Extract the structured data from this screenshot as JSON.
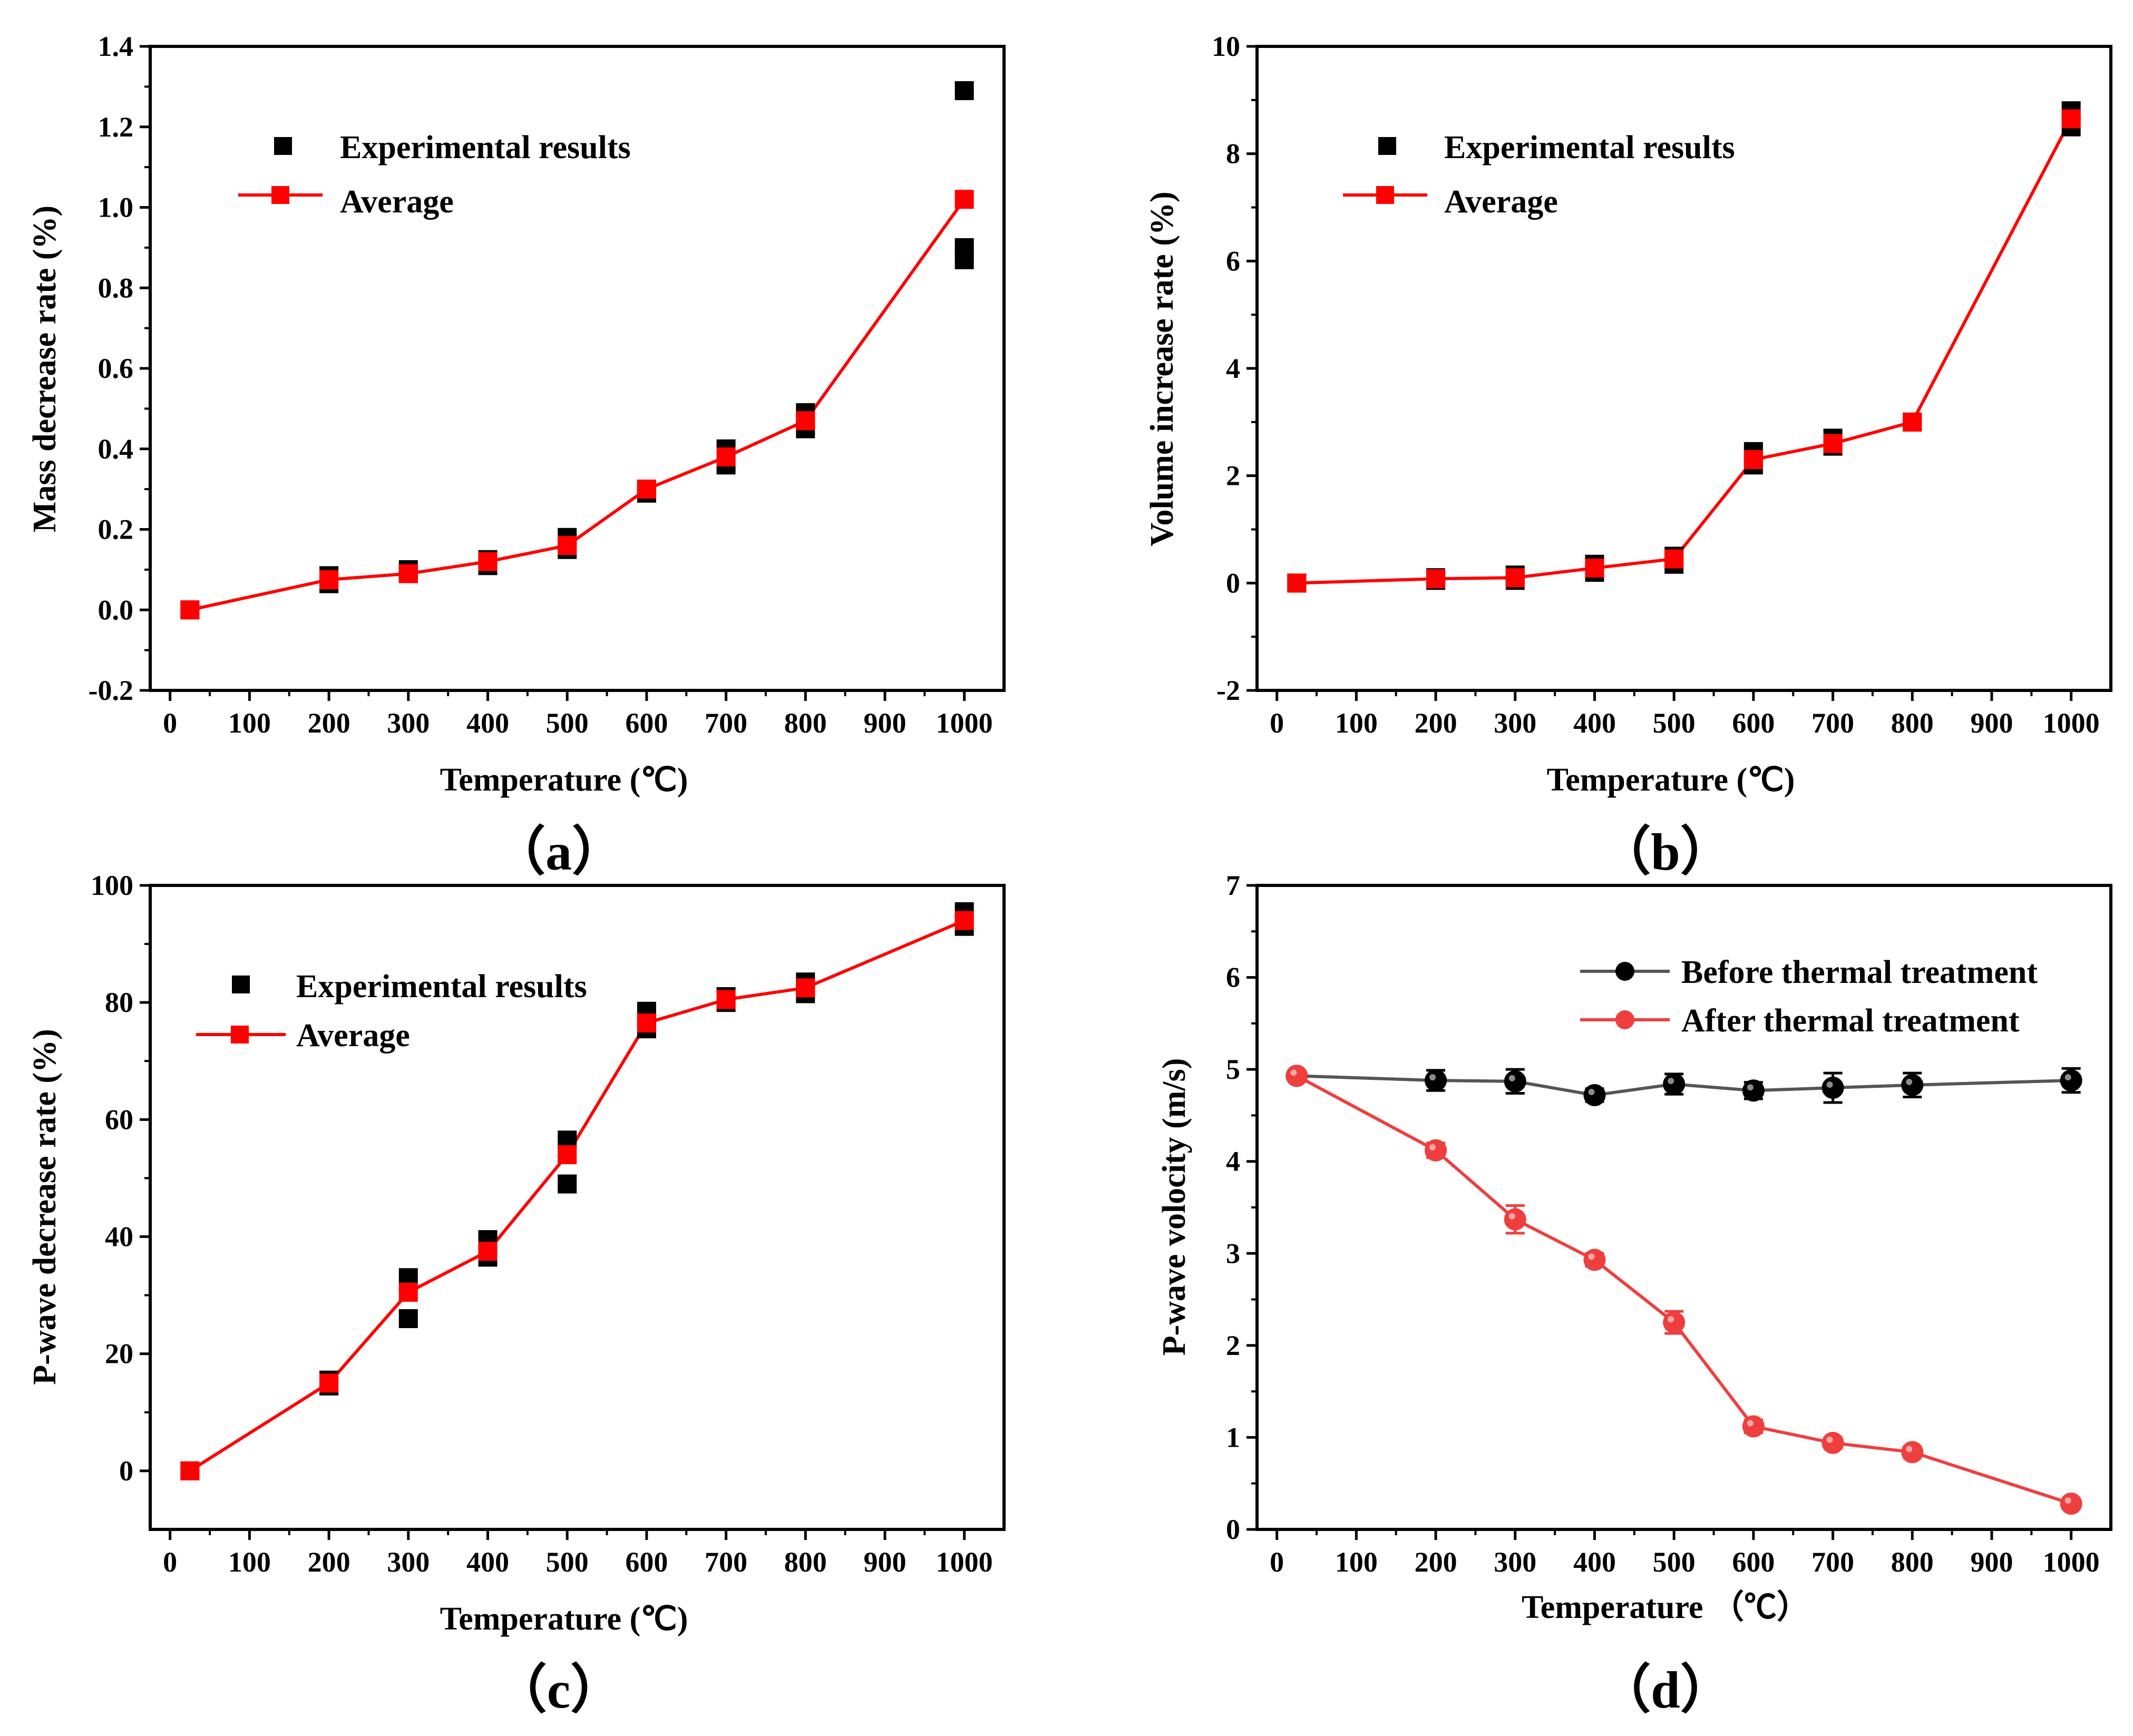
{
  "chart_data": [
    {
      "panel_label": "（a）",
      "type": "scatter",
      "xlabel": "Temperature (℃)",
      "ylabel": "Mass decrease rate (%)",
      "xticks": [
        "0",
        "100",
        "200",
        "300",
        "400",
        "500",
        "600",
        "700",
        "800",
        "900",
        "1000"
      ],
      "yticks": [
        "-0.2",
        "0.0",
        "0.2",
        "0.4",
        "0.6",
        "0.8",
        "1.0",
        "1.2",
        "1.4"
      ],
      "xlim": [
        -25,
        1050
      ],
      "ylim": [
        -0.2,
        1.4
      ],
      "legend_position": "top-left",
      "series": [
        {
          "name": "Experimental results",
          "color": "#000000",
          "marker": "square",
          "line": false,
          "points": [
            [
              25,
              0.0
            ],
            [
              200,
              0.065
            ],
            [
              200,
              0.085
            ],
            [
              300,
              0.09
            ],
            [
              300,
              0.1
            ],
            [
              400,
              0.11
            ],
            [
              400,
              0.125
            ],
            [
              500,
              0.15
            ],
            [
              500,
              0.18
            ],
            [
              600,
              0.29
            ],
            [
              600,
              0.3
            ],
            [
              700,
              0.36
            ],
            [
              700,
              0.4
            ],
            [
              800,
              0.45
            ],
            [
              800,
              0.49
            ],
            [
              1000,
              0.87
            ],
            [
              1000,
              0.9
            ],
            [
              1000,
              1.29
            ]
          ]
        },
        {
          "name": "Average",
          "color": "#ff0000",
          "marker": "square",
          "line": true,
          "points": [
            [
              25,
              0.0
            ],
            [
              200,
              0.075
            ],
            [
              300,
              0.09
            ],
            [
              400,
              0.12
            ],
            [
              500,
              0.16
            ],
            [
              600,
              0.3
            ],
            [
              700,
              0.38
            ],
            [
              800,
              0.47
            ],
            [
              1000,
              1.02
            ]
          ]
        }
      ]
    },
    {
      "panel_label": "（b）",
      "type": "scatter",
      "xlabel": "Temperature (℃)",
      "ylabel": "Volume increase rate (%)",
      "xticks": [
        "0",
        "100",
        "200",
        "300",
        "400",
        "500",
        "600",
        "700",
        "800",
        "900",
        "1000"
      ],
      "yticks": [
        "-2",
        "0",
        "2",
        "4",
        "6",
        "8",
        "10"
      ],
      "xlim": [
        -25,
        1050
      ],
      "ylim": [
        -2,
        10
      ],
      "legend_position": "top-left",
      "series": [
        {
          "name": "Experimental results",
          "color": "#000000",
          "marker": "square",
          "line": false,
          "points": [
            [
              25,
              0.0
            ],
            [
              200,
              0.05
            ],
            [
              200,
              0.1
            ],
            [
              300,
              0.05
            ],
            [
              300,
              0.15
            ],
            [
              400,
              0.2
            ],
            [
              400,
              0.35
            ],
            [
              500,
              0.35
            ],
            [
              500,
              0.5
            ],
            [
              600,
              2.2
            ],
            [
              600,
              2.45
            ],
            [
              700,
              2.55
            ],
            [
              700,
              2.7
            ],
            [
              800,
              3.0
            ],
            [
              1000,
              8.5
            ],
            [
              1000,
              8.8
            ]
          ]
        },
        {
          "name": "Average",
          "color": "#ff0000",
          "marker": "square",
          "line": true,
          "points": [
            [
              25,
              0.0
            ],
            [
              200,
              0.08
            ],
            [
              300,
              0.1
            ],
            [
              400,
              0.28
            ],
            [
              500,
              0.45
            ],
            [
              600,
              2.3
            ],
            [
              700,
              2.6
            ],
            [
              800,
              3.0
            ],
            [
              1000,
              8.65
            ]
          ]
        }
      ]
    },
    {
      "panel_label": "（c）",
      "type": "scatter",
      "xlabel": "Temperature (℃)",
      "ylabel": "P-wave decrease rate (%)",
      "xticks": [
        "0",
        "100",
        "200",
        "300",
        "400",
        "500",
        "600",
        "700",
        "800",
        "900",
        "1000"
      ],
      "yticks": [
        "0",
        "20",
        "40",
        "60",
        "80",
        "100"
      ],
      "xlim": [
        -25,
        1050
      ],
      "ylim": [
        -10,
        100
      ],
      "legend_position": "top-left",
      "series": [
        {
          "name": "Experimental results",
          "color": "#000000",
          "marker": "square",
          "line": false,
          "points": [
            [
              25,
              0.0
            ],
            [
              200,
              14.5
            ],
            [
              200,
              15.5
            ],
            [
              300,
              26.0
            ],
            [
              300,
              33.0
            ],
            [
              400,
              36.5
            ],
            [
              400,
              39.5
            ],
            [
              500,
              49.0
            ],
            [
              500,
              56.5
            ],
            [
              600,
              75.5
            ],
            [
              600,
              78.5
            ],
            [
              700,
              80.0
            ],
            [
              700,
              81.0
            ],
            [
              800,
              81.5
            ],
            [
              800,
              83.5
            ],
            [
              1000,
              93.0
            ],
            [
              1000,
              95.5
            ]
          ]
        },
        {
          "name": "Average",
          "color": "#ff0000",
          "marker": "square",
          "line": true,
          "points": [
            [
              25,
              0.0
            ],
            [
              200,
              15.0
            ],
            [
              300,
              30.5
            ],
            [
              400,
              37.5
            ],
            [
              500,
              54.0
            ],
            [
              600,
              76.5
            ],
            [
              700,
              80.5
            ],
            [
              800,
              82.5
            ],
            [
              1000,
              94.0
            ]
          ]
        }
      ]
    },
    {
      "panel_label": "（d）",
      "type": "line",
      "xlabel": "Temperature （℃）",
      "ylabel": "P-wave volocity (m/s)",
      "xticks": [
        "0",
        "100",
        "200",
        "300",
        "400",
        "500",
        "600",
        "700",
        "800",
        "900",
        "1000"
      ],
      "yticks": [
        "0",
        "1",
        "2",
        "3",
        "4",
        "5",
        "6",
        "7"
      ],
      "xlim": [
        -25,
        1050
      ],
      "ylim": [
        0,
        7
      ],
      "legend_position": "top-right",
      "series": [
        {
          "name": "Before thermal treatment",
          "color": "#555555",
          "marker": "circle",
          "marker_color": "#000000",
          "line": true,
          "points": [
            [
              25,
              4.93
            ],
            [
              200,
              4.88
            ],
            [
              300,
              4.87
            ],
            [
              400,
              4.72
            ],
            [
              500,
              4.84
            ],
            [
              600,
              4.77
            ],
            [
              700,
              4.8
            ],
            [
              800,
              4.83
            ],
            [
              1000,
              4.88
            ]
          ],
          "errors": [
            0.04,
            0.11,
            0.13,
            0.07,
            0.11,
            0.09,
            0.16,
            0.13,
            0.13
          ]
        },
        {
          "name": "After  thermal treatment",
          "color": "#ef3e3e",
          "marker": "circle",
          "marker_color": "#ef3e3e",
          "line": true,
          "points": [
            [
              25,
              4.93
            ],
            [
              200,
              4.12
            ],
            [
              300,
              3.37
            ],
            [
              400,
              2.93
            ],
            [
              500,
              2.25
            ],
            [
              600,
              1.12
            ],
            [
              700,
              0.94
            ],
            [
              800,
              0.84
            ],
            [
              1000,
              0.28
            ]
          ],
          "errors": [
            0.04,
            0.08,
            0.15,
            0.07,
            0.12,
            0.07,
            0.06,
            0.06,
            0.05
          ]
        }
      ]
    }
  ]
}
